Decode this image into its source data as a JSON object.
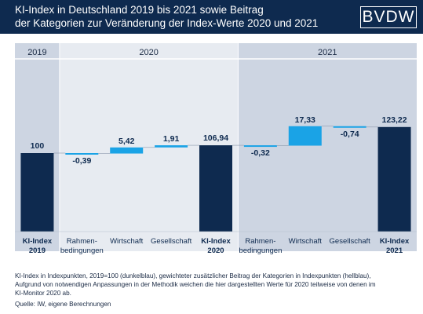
{
  "header": {
    "title_line1": "KI-Index in Deutschland 2019 bis 2021 sowie Beitrag",
    "title_line2": "der Kategorien zur Veränderung der Index-Werte 2020 und 2021",
    "logo_text": "BVDW"
  },
  "colors": {
    "header_bg": "#0e2a4f",
    "dark_bar": "#0e2a4f",
    "light_bar": "#1aa3e6",
    "band_dark": "#cdd5e2",
    "band_light": "#e7ebf1"
  },
  "chart_data": {
    "type": "waterfall",
    "groups": [
      "2019",
      "2020",
      "2021"
    ],
    "categories": [
      "KI-Index\n2019",
      "Rahmen-\nbedingungen",
      "Wirtschaft",
      "Gesellschaft",
      "KI-Index\n2020",
      "Rahmen-\nbedingungen",
      "Wirtschaft",
      "Gesellschaft",
      "KI-Index\n2021"
    ],
    "values": [
      100,
      -0.39,
      5.42,
      1.91,
      106.94,
      -0.32,
      17.33,
      -0.74,
      123.22
    ],
    "labels": [
      "100",
      "-0,39",
      "5,42",
      "1,91",
      "106,94",
      "-0,32",
      "17,33",
      "-0,74",
      "123,22"
    ],
    "kinds": [
      "total",
      "delta",
      "delta",
      "delta",
      "total",
      "delta",
      "delta",
      "delta",
      "total"
    ],
    "y_axis_visible": false,
    "legend": "none"
  },
  "notes": {
    "line1": "KI-Index in Indexpunkten, 2019=100 (dunkelblau), gewichteter zusätzlicher Beitrag der Kategorien in Indexpunkten (hellblau),",
    "line2": "Aufgrund von notwendigen Anpassungen in der Methodik weichen die hier dargestellten Werte für 2020 teilweise von denen im",
    "line3": "KI-Monitor 2020 ab.",
    "source": "Quelle: IW, eigene Berechnungen"
  }
}
